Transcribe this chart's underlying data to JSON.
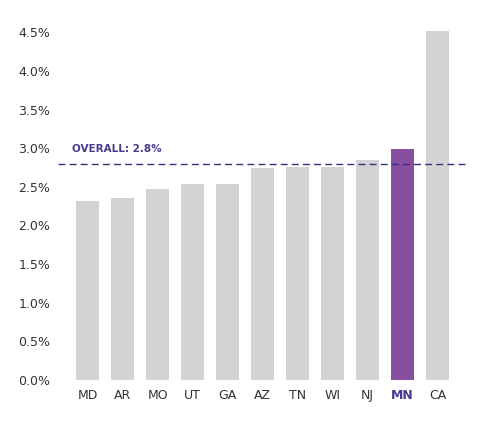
{
  "categories": [
    "MD",
    "AR",
    "MO",
    "UT",
    "GA",
    "AZ",
    "TN",
    "WI",
    "NJ",
    "MN",
    "CA"
  ],
  "values": [
    0.0232,
    0.0235,
    0.0247,
    0.0253,
    0.0254,
    0.0274,
    0.0275,
    0.0276,
    0.0285,
    0.0299,
    0.0452
  ],
  "bar_colors": [
    "#d3d3d3",
    "#d3d3d3",
    "#d3d3d3",
    "#d3d3d3",
    "#d3d3d3",
    "#d3d3d3",
    "#d3d3d3",
    "#d3d3d3",
    "#d3d3d3",
    "#884ea0",
    "#d3d3d3"
  ],
  "overall_line": 0.028,
  "overall_label": "OVERALL: 2.8%",
  "overall_label_color": "#4a3b8c",
  "line_color": "#3a2e7e",
  "ylim": [
    0,
    0.047
  ],
  "yticks": [
    0.0,
    0.005,
    0.01,
    0.015,
    0.02,
    0.025,
    0.03,
    0.035,
    0.04,
    0.045
  ],
  "background_color": "#ffffff",
  "tick_color": "#333333",
  "tick_fontsize": 9,
  "bar_width": 0.65
}
